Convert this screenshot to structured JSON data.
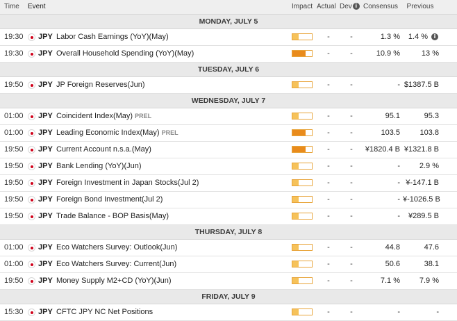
{
  "header": {
    "time": "Time",
    "event": "Event",
    "impact": "Impact",
    "actual": "Actual",
    "dev": "Dev",
    "consensus": "Consensus",
    "previous": "Previous"
  },
  "colors": {
    "impact_medium": "#f6c25a",
    "impact_high": "#e98b1c",
    "flag_red": "#d0021b"
  },
  "days": [
    {
      "label": "MONDAY, JULY 5",
      "events": [
        {
          "time": "19:30",
          "currency": "JPY",
          "name": "Labor Cash Earnings (YoY)(May)",
          "prel": "",
          "impact_level": 0.33,
          "impact": "medium",
          "actual": "-",
          "dev": "-",
          "consensus": "1.3 %",
          "previous": "1.4 %",
          "prev_info": true
        },
        {
          "time": "19:30",
          "currency": "JPY",
          "name": "Overall Household Spending (YoY)(May)",
          "prel": "",
          "impact_level": 0.67,
          "impact": "high",
          "actual": "-",
          "dev": "-",
          "consensus": "10.9 %",
          "previous": "13 %",
          "prev_info": false
        }
      ]
    },
    {
      "label": "TUESDAY, JULY 6",
      "events": [
        {
          "time": "19:50",
          "currency": "JPY",
          "name": "JP Foreign Reserves(Jun)",
          "prel": "",
          "impact_level": 0.33,
          "impact": "medium",
          "actual": "-",
          "dev": "-",
          "consensus": "-",
          "previous": "$1387.5 B",
          "prev_info": false
        }
      ]
    },
    {
      "label": "WEDNESDAY, JULY 7",
      "events": [
        {
          "time": "01:00",
          "currency": "JPY",
          "name": "Coincident Index(May)",
          "prel": "PREL",
          "impact_level": 0.33,
          "impact": "medium",
          "actual": "-",
          "dev": "-",
          "consensus": "95.1",
          "previous": "95.3",
          "prev_info": false
        },
        {
          "time": "01:00",
          "currency": "JPY",
          "name": "Leading Economic Index(May)",
          "prel": "PREL",
          "impact_level": 0.67,
          "impact": "high",
          "actual": "-",
          "dev": "-",
          "consensus": "103.5",
          "previous": "103.8",
          "prev_info": false
        },
        {
          "time": "19:50",
          "currency": "JPY",
          "name": "Current Account n.s.a.(May)",
          "prel": "",
          "impact_level": 0.67,
          "impact": "high",
          "actual": "-",
          "dev": "-",
          "consensus": "¥1820.4 B",
          "previous": "¥1321.8 B",
          "prev_info": false
        },
        {
          "time": "19:50",
          "currency": "JPY",
          "name": "Bank Lending (YoY)(Jun)",
          "prel": "",
          "impact_level": 0.33,
          "impact": "medium",
          "actual": "-",
          "dev": "-",
          "consensus": "-",
          "previous": "2.9 %",
          "prev_info": false
        },
        {
          "time": "19:50",
          "currency": "JPY",
          "name": "Foreign Investment in Japan Stocks(Jul 2)",
          "prel": "",
          "impact_level": 0.33,
          "impact": "medium",
          "actual": "-",
          "dev": "-",
          "consensus": "-",
          "previous": "¥-147.1 B",
          "prev_info": false
        },
        {
          "time": "19:50",
          "currency": "JPY",
          "name": "Foreign Bond Investment(Jul 2)",
          "prel": "",
          "impact_level": 0.33,
          "impact": "medium",
          "actual": "-",
          "dev": "-",
          "consensus": "-",
          "previous": "¥-1026.5 B",
          "prev_info": false
        },
        {
          "time": "19:50",
          "currency": "JPY",
          "name": "Trade Balance - BOP Basis(May)",
          "prel": "",
          "impact_level": 0.33,
          "impact": "medium",
          "actual": "-",
          "dev": "-",
          "consensus": "-",
          "previous": "¥289.5 B",
          "prev_info": false
        }
      ]
    },
    {
      "label": "THURSDAY, JULY 8",
      "events": [
        {
          "time": "01:00",
          "currency": "JPY",
          "name": "Eco Watchers Survey: Outlook(Jun)",
          "prel": "",
          "impact_level": 0.33,
          "impact": "medium",
          "actual": "-",
          "dev": "-",
          "consensus": "44.8",
          "previous": "47.6",
          "prev_info": false
        },
        {
          "time": "01:00",
          "currency": "JPY",
          "name": "Eco Watchers Survey: Current(Jun)",
          "prel": "",
          "impact_level": 0.33,
          "impact": "medium",
          "actual": "-",
          "dev": "-",
          "consensus": "50.6",
          "previous": "38.1",
          "prev_info": false
        },
        {
          "time": "19:50",
          "currency": "JPY",
          "name": "Money Supply M2+CD (YoY)(Jun)",
          "prel": "",
          "impact_level": 0.33,
          "impact": "medium",
          "actual": "-",
          "dev": "-",
          "consensus": "7.1 %",
          "previous": "7.9 %",
          "prev_info": false
        }
      ]
    },
    {
      "label": "FRIDAY, JULY 9",
      "events": [
        {
          "time": "15:30",
          "currency": "JPY",
          "name": "CFTC JPY NC Net Positions",
          "prel": "",
          "impact_level": 0.33,
          "impact": "medium",
          "actual": "-",
          "dev": "-",
          "consensus": "-",
          "previous": "-",
          "prev_info": false
        }
      ]
    }
  ]
}
